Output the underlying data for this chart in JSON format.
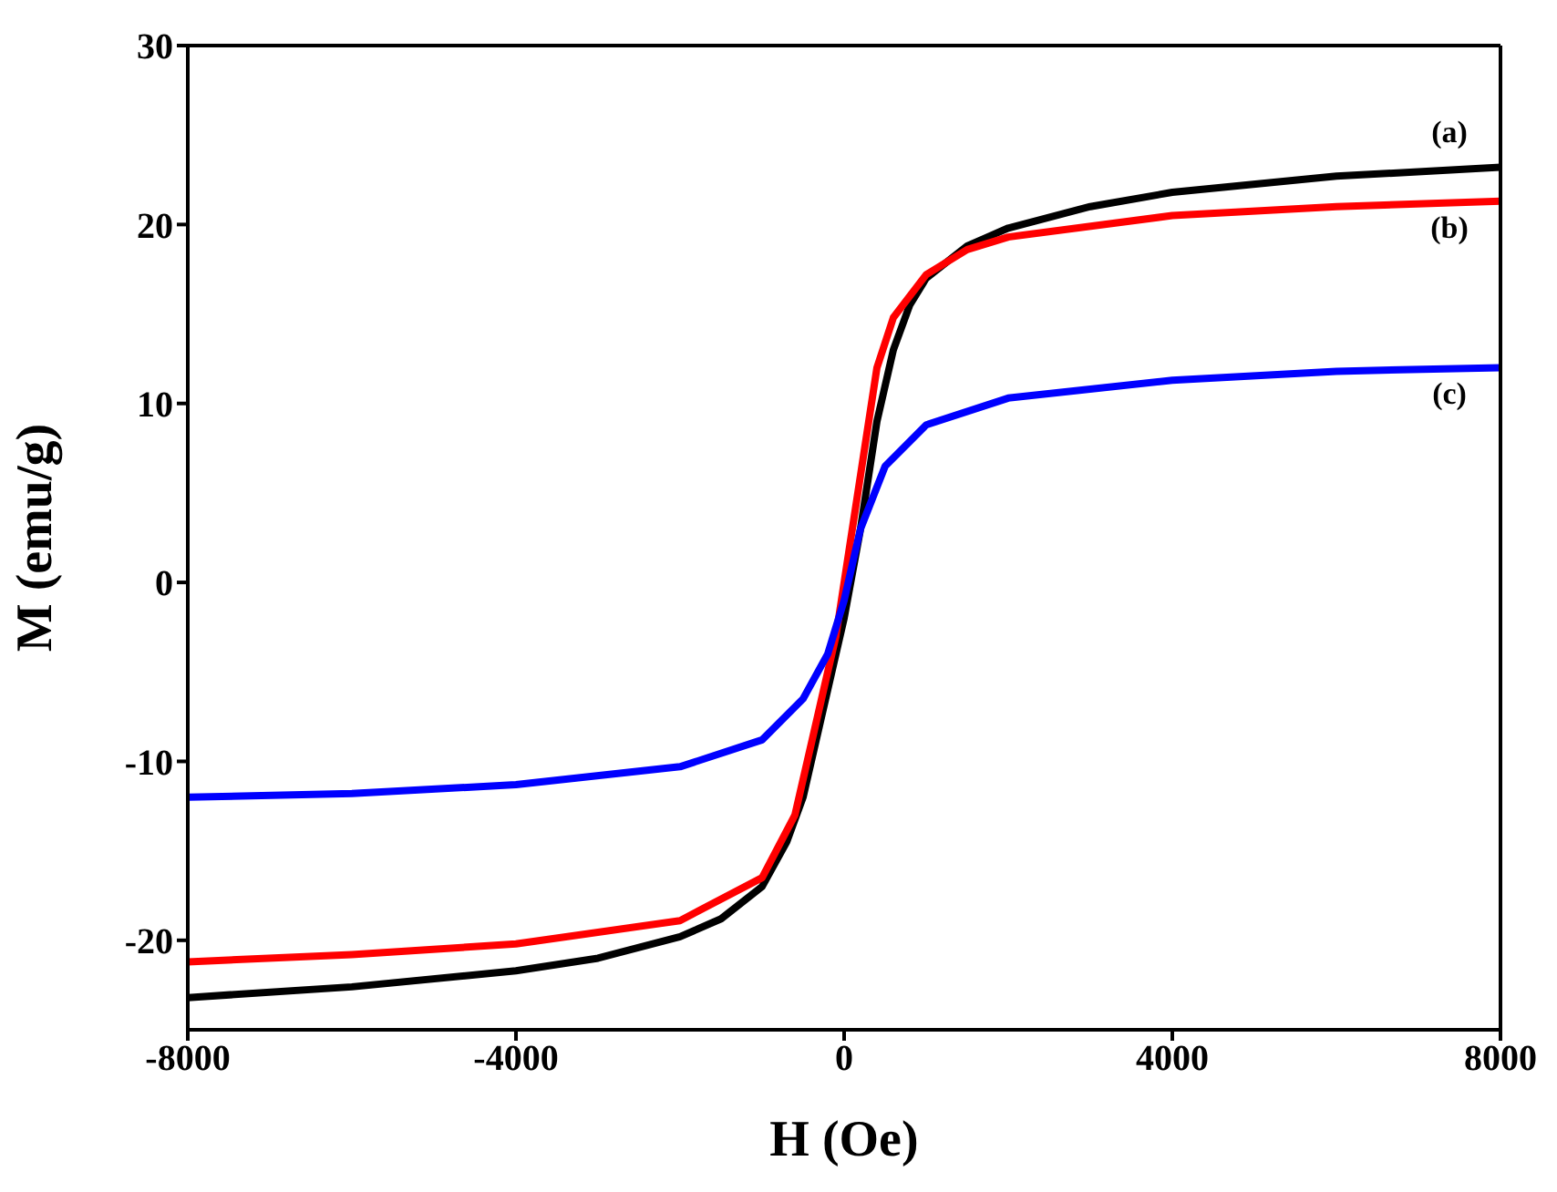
{
  "chart_data": {
    "type": "line",
    "xlabel": "H (Oe)",
    "ylabel": "M (emu/g)",
    "xlim": [
      -8000,
      8000
    ],
    "xticks": [
      -8000,
      -4000,
      0,
      4000,
      8000
    ],
    "ylim": [
      -25,
      30
    ],
    "yticks": [
      -20,
      -10,
      0,
      10,
      20,
      30
    ],
    "legend": false,
    "marker": "none",
    "line_style": "solid",
    "series": [
      {
        "name": "(a)",
        "color": "#000000",
        "x": [
          -8000,
          -6000,
          -4000,
          -3000,
          -2000,
          -1500,
          -1000,
          -700,
          -500,
          -300,
          -100,
          0,
          200,
          400,
          600,
          800,
          1000,
          1500,
          2000,
          3000,
          4000,
          6000,
          8000
        ],
        "values": [
          -23.2,
          -22.6,
          -21.7,
          -21,
          -19.8,
          -18.8,
          -17,
          -14.5,
          -12,
          -8,
          -4,
          -2,
          3,
          9,
          13,
          15.5,
          17,
          18.8,
          19.8,
          21,
          21.8,
          22.7,
          23.2
        ]
      },
      {
        "name": "(b)",
        "color": "#ff0000",
        "x": [
          -8000,
          -6000,
          -4000,
          -2000,
          -1000,
          -600,
          -300,
          -100,
          0,
          200,
          400,
          600,
          1000,
          1500,
          2000,
          4000,
          6000,
          8000
        ],
        "values": [
          -21.2,
          -20.8,
          -20.2,
          -18.9,
          -16.5,
          -13,
          -7,
          -3,
          0,
          6,
          12,
          14.8,
          17.2,
          18.6,
          19.3,
          20.5,
          21,
          21.3
        ]
      },
      {
        "name": "(c)",
        "color": "#0000ff",
        "x": [
          -8000,
          -6000,
          -4000,
          -2000,
          -1000,
          -500,
          -200,
          0,
          200,
          500,
          1000,
          2000,
          4000,
          6000,
          8000
        ],
        "values": [
          -12,
          -11.8,
          -11.3,
          -10.3,
          -8.8,
          -6.5,
          -4,
          -1,
          3,
          6.5,
          8.8,
          10.3,
          11.3,
          11.8,
          12
        ]
      }
    ]
  }
}
